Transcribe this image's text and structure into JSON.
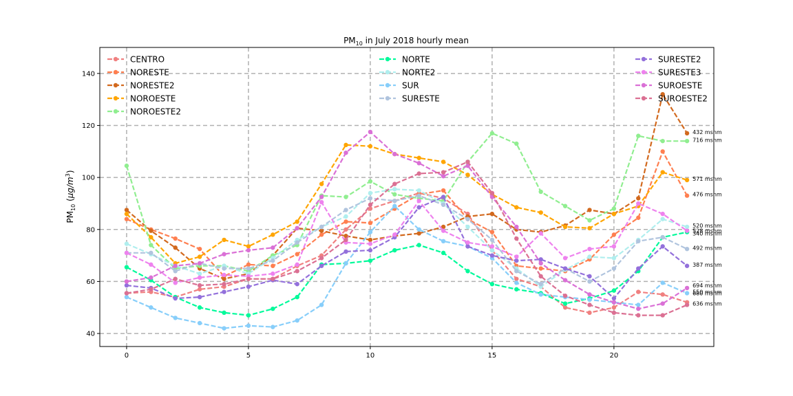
{
  "chart_data": {
    "type": "line",
    "title": "PM10 in July 2018 hourly mean",
    "title_main": "PM",
    "title_sub": "10",
    "title_rest": " in July 2018 hourly mean",
    "ylabel": "PM10 (μg/m3)",
    "ylabel_main": "PM",
    "ylabel_sub": "10",
    "ylabel_mid": " (",
    "ylabel_unit": "μg/m",
    "ylabel_sup": "3",
    "ylabel_end": ")",
    "xlim": [
      -1.1,
      24.1
    ],
    "ylim": [
      35,
      150
    ],
    "xticks": [
      0,
      5,
      10,
      15,
      20
    ],
    "yticks": [
      40,
      60,
      80,
      100,
      120,
      140
    ],
    "grid": true,
    "grid_style": "dashed",
    "legend_placement": "top, three columns",
    "x": [
      0,
      1,
      2,
      3,
      4,
      5,
      6,
      7,
      8,
      9,
      10,
      11,
      12,
      13,
      14,
      15,
      16,
      17,
      18,
      19,
      20,
      21,
      22,
      23
    ],
    "series": [
      {
        "name": "CENTRO",
        "color": "#f08080",
        "values": [
          55.5,
          56,
          54,
          57,
          58,
          61,
          61,
          66,
          70,
          80,
          88,
          91,
          94,
          92,
          86,
          72,
          61,
          58,
          50,
          48,
          50,
          56,
          55,
          52
        ]
      },
      {
        "name": "NORESTE",
        "color": "#ff7f50",
        "values": [
          84,
          80,
          76.5,
          72.5,
          62,
          66.5,
          66,
          70.5,
          78,
          83,
          82.5,
          88,
          93.5,
          95,
          84,
          79,
          66,
          65,
          64,
          68.5,
          78,
          84.5,
          110,
          93
        ]
      },
      {
        "name": "NORESTE2",
        "color": "#d2691e",
        "values": [
          87.5,
          79.5,
          73,
          65,
          61,
          63,
          70,
          80.5,
          79.5,
          77.5,
          76,
          77.5,
          78.5,
          81,
          85,
          86,
          80,
          79,
          81.5,
          87.5,
          86,
          92,
          132,
          117
        ]
      },
      {
        "name": "NOROESTE",
        "color": "#ffa500",
        "values": [
          86,
          77,
          67,
          69.5,
          76,
          73.5,
          78,
          83,
          97.5,
          112.5,
          112,
          109,
          107.5,
          106,
          101,
          93.5,
          88.5,
          86.5,
          81,
          80.5,
          86,
          89,
          102,
          99
        ]
      },
      {
        "name": "NOROESTE2",
        "color": "#90ee90",
        "values": [
          104.5,
          74,
          65,
          66,
          66,
          64,
          70,
          74,
          93,
          92.5,
          98.5,
          93.5,
          92,
          91,
          106,
          117,
          113,
          94.5,
          89,
          83.5,
          88,
          116,
          114,
          114
        ]
      },
      {
        "name": "NORTE",
        "color": "#00fa9a",
        "values": [
          65.5,
          60.5,
          54,
          50,
          48,
          47,
          49.5,
          54,
          66.5,
          67,
          68,
          72,
          74,
          71,
          64,
          59,
          57,
          55.5,
          51.5,
          53.5,
          56.5,
          64,
          77,
          79
        ]
      },
      {
        "name": "NORTE2",
        "color": "#afeeee",
        "values": [
          74.5,
          70.5,
          66,
          63,
          66,
          63,
          69,
          76,
          81,
          85,
          94,
          95.5,
          95,
          90,
          81,
          72,
          65,
          58,
          64.5,
          69.5,
          69,
          76,
          84,
          81
        ]
      },
      {
        "name": "SUR",
        "color": "#87cefa",
        "values": [
          54,
          50,
          46,
          44,
          42,
          43,
          42.5,
          45,
          51,
          67,
          79,
          89,
          80,
          75.5,
          73.5,
          69,
          59.5,
          55,
          54,
          53,
          52,
          51,
          59.5,
          55.5
        ]
      },
      {
        "name": "SURESTE",
        "color": "#b0c4de",
        "values": [
          71,
          71,
          64,
          67,
          65,
          65,
          68,
          75,
          81,
          87.5,
          92,
          91,
          93,
          89.5,
          84,
          76,
          64,
          59,
          65,
          60,
          65,
          75.5,
          77,
          72.5
        ]
      },
      {
        "name": "SURESTE2",
        "color": "#9370db",
        "values": [
          58.5,
          57.5,
          53.5,
          54,
          56,
          58,
          60.5,
          59,
          66,
          71.5,
          72,
          77,
          88.5,
          92.5,
          73.5,
          70,
          68,
          68.5,
          65,
          62,
          53.5,
          65,
          73.5,
          66
        ]
      },
      {
        "name": "SURESTE3",
        "color": "#ee82ee",
        "values": [
          71,
          66.5,
          59.5,
          61.5,
          62.5,
          62,
          63,
          66.5,
          90.5,
          75,
          74.5,
          78,
          91,
          79.5,
          75,
          73.5,
          69.5,
          78.5,
          69,
          72.5,
          73.5,
          90,
          86,
          79.5
        ]
      },
      {
        "name": "SUROESTE",
        "color": "#da70d6",
        "values": [
          60,
          61.5,
          66,
          67,
          70.5,
          72,
          73,
          80.5,
          92.5,
          109.5,
          117.5,
          109,
          105.5,
          100.5,
          104.5,
          92.5,
          81,
          67,
          60.5,
          55,
          52,
          49.5,
          51.5,
          57.5
        ]
      },
      {
        "name": "SUROESTE2",
        "color": "#db7093",
        "values": [
          55.5,
          57,
          61,
          58.5,
          59,
          61,
          61,
          64,
          69,
          76,
          89.5,
          97.5,
          101.5,
          102,
          106,
          94,
          76.5,
          62,
          54.5,
          51,
          48,
          47,
          47,
          51
        ]
      }
    ],
    "annotations": [
      {
        "text": "432 msnm",
        "y": 117.5
      },
      {
        "text": "716 msnm",
        "y": 114.5
      },
      {
        "text": "571 msnm",
        "y": 99.5
      },
      {
        "text": "476 msnm",
        "y": 93.5
      },
      {
        "text": "520 msnm",
        "y": 81.5
      },
      {
        "text": "528 msnm",
        "y": 79.5
      },
      {
        "text": "340 msnm",
        "y": 78.5
      },
      {
        "text": "492 msnm",
        "y": 73
      },
      {
        "text": "387 msnm",
        "y": 66.5
      },
      {
        "text": "694 msnm",
        "y": 58.5
      },
      {
        "text": "550 msnm",
        "y": 56
      },
      {
        "text": "680 msnm",
        "y": 55.5
      },
      {
        "text": "636 msnm",
        "y": 51.5
      }
    ]
  }
}
